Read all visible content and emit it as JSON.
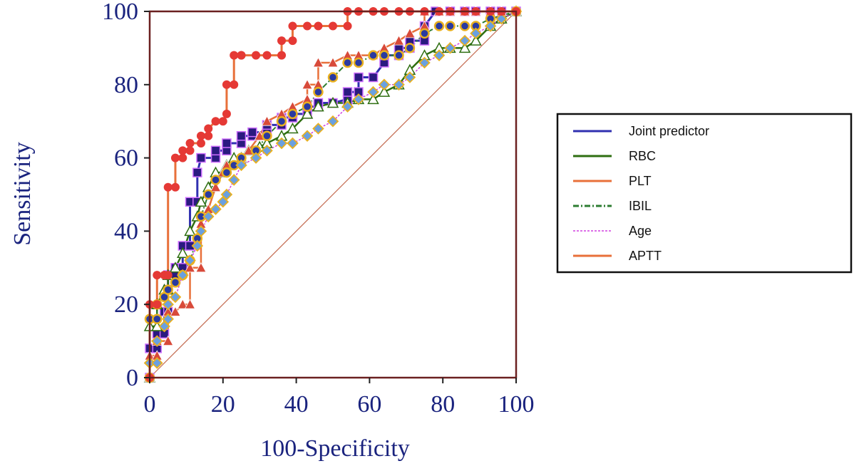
{
  "chart_data": {
    "type": "line",
    "title": "",
    "xlabel": "100-Specificity",
    "ylabel": "Sensitivity",
    "xlim": [
      0,
      100
    ],
    "ylim": [
      0,
      100
    ],
    "xticks": [
      "0",
      "20",
      "40",
      "60",
      "80",
      "100"
    ],
    "yticks": [
      "0",
      "20",
      "40",
      "60",
      "80",
      "100"
    ],
    "legend_position": "right",
    "diagonal_reference": true,
    "series": [
      {
        "name": "Joint predictor",
        "color": "#3030b0",
        "marker_color": "#2a1a80",
        "marker": "square",
        "x": [
          0,
          0,
          2,
          2,
          4,
          4,
          5,
          5,
          5,
          7,
          7,
          9,
          9,
          11,
          11,
          13,
          13,
          14,
          18,
          18,
          21,
          21,
          25,
          25,
          28,
          28,
          32,
          32,
          36,
          36,
          39,
          39,
          43,
          43,
          46,
          46,
          50,
          54,
          54,
          57,
          57,
          61,
          64,
          64,
          68,
          68,
          71,
          71,
          75,
          75,
          78,
          82,
          86,
          89,
          93,
          96,
          100
        ],
        "y": [
          0,
          8,
          8,
          12,
          12,
          18,
          18,
          24,
          28,
          28,
          30,
          30,
          36,
          36,
          48,
          48,
          56,
          60,
          60,
          62,
          62,
          64,
          64,
          66,
          66,
          67,
          67,
          69,
          69,
          71,
          71,
          72,
          72,
          74,
          74,
          75,
          75,
          76,
          78,
          78,
          82,
          82,
          86,
          88,
          88,
          90,
          90,
          92,
          92,
          96,
          100,
          100,
          100,
          100,
          100,
          100,
          100
        ]
      },
      {
        "name": "RBC",
        "color": "#2e6e10",
        "marker_color": "#ffffff",
        "marker": "triangle-open",
        "x": [
          0,
          0,
          2,
          2,
          4,
          5,
          5,
          7,
          9,
          11,
          13,
          14,
          16,
          18,
          20,
          21,
          23,
          25,
          27,
          30,
          32,
          36,
          39,
          43,
          46,
          50,
          54,
          57,
          61,
          64,
          68,
          71,
          75,
          79,
          82,
          86,
          89,
          93,
          96,
          100
        ],
        "y": [
          0,
          14,
          14,
          20,
          24,
          24,
          28,
          30,
          34,
          40,
          44,
          48,
          52,
          56,
          56,
          58,
          60,
          60,
          62,
          63,
          64,
          66,
          68,
          72,
          74,
          75,
          75,
          76,
          76,
          78,
          80,
          84,
          88,
          90,
          90,
          90,
          92,
          96,
          98,
          100
        ]
      },
      {
        "name": "PLT",
        "color": "#e8703a",
        "marker_color": "#d84a3a",
        "marker": "triangle",
        "x": [
          0,
          0,
          2,
          2,
          5,
          5,
          7,
          9,
          11,
          11,
          14,
          14,
          16,
          18,
          20,
          21,
          25,
          27,
          30,
          32,
          36,
          39,
          43,
          43,
          46,
          46,
          50,
          54,
          57,
          61,
          64,
          68,
          71,
          75,
          75,
          79,
          82,
          86,
          89,
          93,
          96,
          100
        ],
        "y": [
          0,
          6,
          6,
          10,
          10,
          18,
          18,
          20,
          20,
          30,
          30,
          42,
          46,
          52,
          56,
          58,
          60,
          62,
          66,
          70,
          72,
          74,
          76,
          80,
          80,
          86,
          86,
          88,
          88,
          88,
          90,
          92,
          94,
          96,
          100,
          100,
          100,
          100,
          100,
          100,
          100,
          100
        ]
      },
      {
        "name": "IBIL",
        "color": "#2e7d32",
        "marker_color": "#2a3aa0",
        "marker": "circle-gold",
        "x": [
          0,
          0,
          2,
          2,
          4,
          5,
          7,
          9,
          11,
          13,
          14,
          16,
          18,
          21,
          23,
          25,
          29,
          32,
          36,
          39,
          43,
          46,
          50,
          54,
          57,
          61,
          64,
          68,
          71,
          75,
          79,
          82,
          86,
          89,
          93,
          100
        ],
        "y": [
          0,
          16,
          16,
          20,
          22,
          24,
          26,
          28,
          32,
          38,
          44,
          50,
          54,
          56,
          58,
          60,
          62,
          66,
          70,
          72,
          74,
          78,
          82,
          86,
          86,
          88,
          88,
          88,
          90,
          94,
          96,
          96,
          96,
          96,
          98,
          100
        ]
      },
      {
        "name": "Age",
        "color": "#d040e0",
        "marker_color": "#6aa0e0",
        "marker": "diamond",
        "x": [
          0,
          0,
          2,
          2,
          4,
          5,
          5,
          7,
          9,
          11,
          13,
          14,
          16,
          18,
          20,
          21,
          23,
          25,
          29,
          32,
          36,
          39,
          43,
          46,
          50,
          54,
          57,
          61,
          64,
          68,
          71,
          75,
          79,
          82,
          86,
          89,
          93,
          96,
          100
        ],
        "y": [
          0,
          4,
          4,
          10,
          14,
          16,
          20,
          22,
          28,
          32,
          36,
          40,
          44,
          46,
          48,
          50,
          54,
          58,
          60,
          62,
          64,
          64,
          66,
          68,
          70,
          74,
          76,
          78,
          80,
          80,
          82,
          86,
          88,
          90,
          92,
          94,
          96,
          98,
          100
        ]
      },
      {
        "name": "APTT",
        "color": "#e8703a",
        "marker_color": "#e53935",
        "marker": "circle",
        "x": [
          0,
          0,
          2,
          2,
          4,
          4,
          5,
          5,
          7,
          7,
          9,
          9,
          11,
          11,
          14,
          14,
          16,
          16,
          18,
          20,
          21,
          21,
          23,
          23,
          25,
          25,
          29,
          32,
          36,
          36,
          39,
          39,
          43,
          46,
          50,
          54,
          54,
          57,
          61,
          64,
          68,
          71,
          75,
          79,
          82,
          86,
          89,
          93,
          96,
          100
        ],
        "y": [
          0,
          20,
          20,
          28,
          28,
          28,
          28,
          52,
          52,
          60,
          60,
          62,
          62,
          64,
          64,
          66,
          66,
          68,
          70,
          70,
          72,
          80,
          80,
          88,
          88,
          88,
          88,
          88,
          88,
          92,
          92,
          96,
          96,
          96,
          96,
          96,
          100,
          100,
          100,
          100,
          100,
          100,
          100,
          100,
          100,
          100,
          100,
          100,
          100,
          100
        ]
      }
    ]
  }
}
